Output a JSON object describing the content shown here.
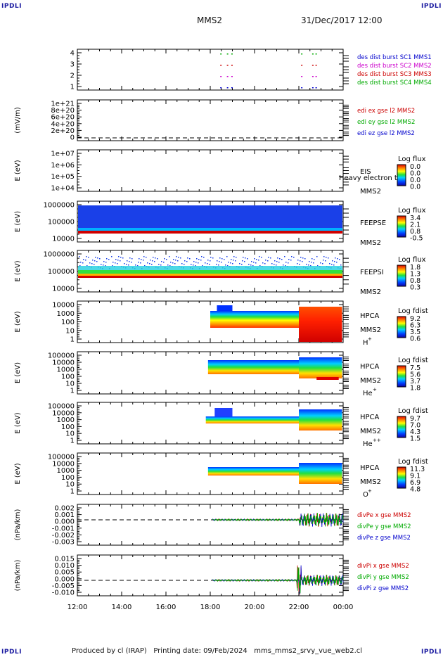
{
  "corners": {
    "tl": "IPDLI",
    "tr": "IPDLI",
    "bl": "IPDLI",
    "br": "IPDLI"
  },
  "header": {
    "mission": "MMS2",
    "datetime": "31/Dec/2017 12:00"
  },
  "footer": "Produced by cl (IRAP)   Printing date: 09/Feb/2024   mms_mms2_srvy_vue_web2.cl",
  "colorbars": {
    "eis": {
      "title": "Log flux",
      "ticks": [
        "0.0",
        "0.0",
        "0.0",
        "0.0"
      ]
    },
    "feeps_e": {
      "title": "Log flux",
      "ticks": [
        "3.4",
        "2.1",
        "0.8",
        "-0.5"
      ]
    },
    "feeps_i": {
      "title": "Log flux",
      "ticks": [
        "1.8",
        "1.3",
        "0.8",
        "0.3"
      ]
    },
    "hpca_h": {
      "title": "Log fdist",
      "ticks": [
        "9.2",
        "6.3",
        "3.5",
        "0.6"
      ]
    },
    "hpca_he": {
      "title": "Log fdist",
      "ticks": [
        "7.5",
        "5.6",
        "3.7",
        "1.8"
      ]
    },
    "hpca_hepp": {
      "title": "Log fdist",
      "ticks": [
        "9.7",
        "7.0",
        "4.3",
        "1.5"
      ]
    },
    "hpca_o": {
      "title": "Log fdist",
      "ticks": [
        "11.3",
        "9.1",
        "6.9",
        "4.8"
      ]
    }
  },
  "chart_data": [
    {
      "type": "scatter",
      "id": "burst",
      "ylabel": "",
      "yticks": [
        "4",
        "3",
        "2",
        "1"
      ],
      "legend": [
        {
          "label": "des dist burst SC1 MMS1",
          "color": "#0000cc"
        },
        {
          "label": "des dist burst SC2 MMS2",
          "color": "#cc00cc"
        },
        {
          "label": "des dist burst SC3 MMS3",
          "color": "#cc0000"
        },
        {
          "label": "des dist burst SC4 MMS4",
          "color": "#00aa00"
        }
      ],
      "x_hours": [
        18.45,
        18.75,
        18.95,
        22.1,
        22.6,
        22.75
      ]
    },
    {
      "type": "line",
      "id": "edi",
      "ylabel": "(mV/m)",
      "yticks": [
        "1e+21",
        "8e+20",
        "6e+20",
        "4e+20",
        "2e+20",
        "0"
      ],
      "legend": [
        {
          "label": "edi ex gse l2 MMS2",
          "color": "#cc0000"
        },
        {
          "label": "edi ey gse l2 MMS2",
          "color": "#00aa00"
        },
        {
          "label": "edi ez gse l2 MMS2",
          "color": "#0000cc"
        }
      ]
    },
    {
      "type": "heatmap",
      "id": "eis",
      "ylabel": "E (eV)",
      "yticks": [
        "1e+07",
        "1e+06",
        "1e+05",
        "1e+04"
      ],
      "labels": [
        "EIS",
        "MMS2"
      ],
      "overlay": "Heavy electron to",
      "xrange_hours": []
    },
    {
      "type": "heatmap",
      "id": "feeps_e",
      "ylabel": "E (eV)",
      "yticks": [
        "1000000",
        "100000",
        "10000"
      ],
      "labels": [
        "FEEPSE",
        "MMS2"
      ],
      "xrange_hours": [
        12,
        24
      ]
    },
    {
      "type": "heatmap",
      "id": "feeps_i",
      "ylabel": "E (eV)",
      "yticks": [
        "1000000",
        "100000",
        "10000"
      ],
      "labels": [
        "FEEPSI",
        "MMS2"
      ],
      "xrange_hours": [
        12,
        24
      ]
    },
    {
      "type": "heatmap",
      "id": "hpca_h",
      "ylabel": "E (eV)",
      "yticks": [
        "10000",
        "1000",
        "100",
        "10",
        "1"
      ],
      "labels": [
        "HPCA",
        "MMS2",
        "H",
        "+"
      ],
      "xrange_hours": [
        17.8,
        24
      ]
    },
    {
      "type": "heatmap",
      "id": "hpca_he",
      "ylabel": "E (eV)",
      "yticks": [
        "100000",
        "10000",
        "1000",
        "100",
        "10",
        "1"
      ],
      "labels": [
        "HPCA",
        "MMS2",
        "He",
        "+"
      ],
      "xrange_hours": [
        17.9,
        24
      ]
    },
    {
      "type": "heatmap",
      "id": "hpca_hepp",
      "ylabel": "E (eV)",
      "yticks": [
        "100000",
        "10000",
        "1000",
        "100",
        "10",
        "1"
      ],
      "labels": [
        "HPCA",
        "MMS2",
        "He",
        "++"
      ],
      "xrange_hours": [
        17.8,
        24
      ]
    },
    {
      "type": "heatmap",
      "id": "hpca_o",
      "ylabel": "E (eV)",
      "yticks": [
        "100000",
        "10000",
        "1000",
        "100",
        "10",
        "1"
      ],
      "labels": [
        "HPCA",
        "MMS2",
        "O",
        "+"
      ],
      "xrange_hours": [
        17.9,
        24
      ]
    },
    {
      "type": "line",
      "id": "divpe",
      "ylabel": "(nPa/km)",
      "yticks": [
        "0.002",
        "0.001",
        "0.000",
        "-0.001",
        "-0.002",
        "-0.003"
      ],
      "legend": [
        {
          "label": "divPe x gse MMS2",
          "color": "#cc0000"
        },
        {
          "label": "divPe y gse MMS2",
          "color": "#00aa00"
        },
        {
          "label": "divPe z gse MMS2",
          "color": "#0000cc"
        }
      ],
      "xrange_hours": [
        18.0,
        24
      ]
    },
    {
      "type": "line",
      "id": "divpi",
      "ylabel": "(nPa/km)",
      "yticks": [
        "0.015",
        "0.010",
        "0.005",
        "0.000",
        "-0.005",
        "-0.010"
      ],
      "legend": [
        {
          "label": "divPi x gse MMS2",
          "color": "#cc0000"
        },
        {
          "label": "divPi y gse MMS2",
          "color": "#00aa00"
        },
        {
          "label": "divPi z gse MMS2",
          "color": "#0000cc"
        }
      ],
      "xrange_hours": [
        18.0,
        24
      ]
    }
  ],
  "xaxis": {
    "ticks": [
      "12:00",
      "14:00",
      "16:00",
      "18:00",
      "20:00",
      "22:00",
      "00:00"
    ]
  }
}
